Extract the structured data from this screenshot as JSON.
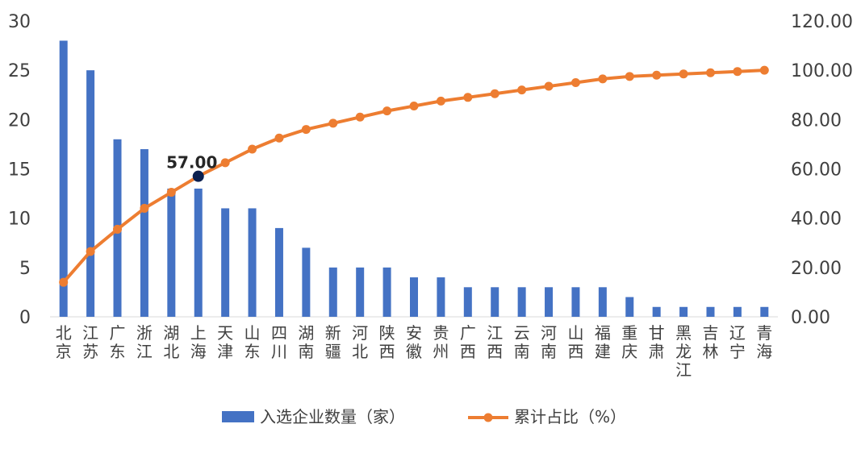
{
  "chart_data": {
    "type": "bar",
    "categories": [
      "北京",
      "江苏",
      "广东",
      "浙江",
      "湖北",
      "上海",
      "天津",
      "山东",
      "四川",
      "湖南",
      "新疆",
      "河北",
      "陕西",
      "安徽",
      "贵州",
      "广西",
      "江西",
      "云南",
      "河南",
      "山西",
      "福建",
      "重庆",
      "甘肃",
      "黑龙江",
      "吉林",
      "辽宁",
      "青海"
    ],
    "series": [
      {
        "name": "入选企业数量（家）",
        "type": "bar",
        "axis": "left",
        "color": "#4472C4",
        "values": [
          28,
          25,
          18,
          17,
          13,
          13,
          11,
          11,
          9,
          7,
          5,
          5,
          5,
          4,
          4,
          3,
          3,
          3,
          3,
          3,
          3,
          2,
          1,
          1,
          1,
          1,
          1
        ]
      },
      {
        "name": "累计占比（%）",
        "type": "line",
        "axis": "right",
        "color": "#ED7D31",
        "values": [
          14.0,
          26.5,
          35.5,
          44.0,
          50.5,
          57.0,
          62.5,
          68.0,
          72.5,
          76.0,
          78.5,
          81.0,
          83.5,
          85.5,
          87.5,
          89.0,
          90.5,
          92.0,
          93.5,
          95.0,
          96.5,
          97.5,
          98.0,
          98.5,
          99.0,
          99.5,
          100.0
        ]
      }
    ],
    "y_left": {
      "ylim": [
        0,
        30
      ],
      "ticks": [
        "0",
        "5",
        "10",
        "15",
        "20",
        "25",
        "30"
      ]
    },
    "y_right": {
      "ylim": [
        0,
        120
      ],
      "ticks": [
        "0.00",
        "20.00",
        "40.00",
        "60.00",
        "80.00",
        "100.00",
        "120.00"
      ]
    },
    "annotation": {
      "category_index": 5,
      "text": "57.00",
      "marker_color": "#0B1F4F"
    },
    "grid": false,
    "legend_position": "bottom"
  }
}
